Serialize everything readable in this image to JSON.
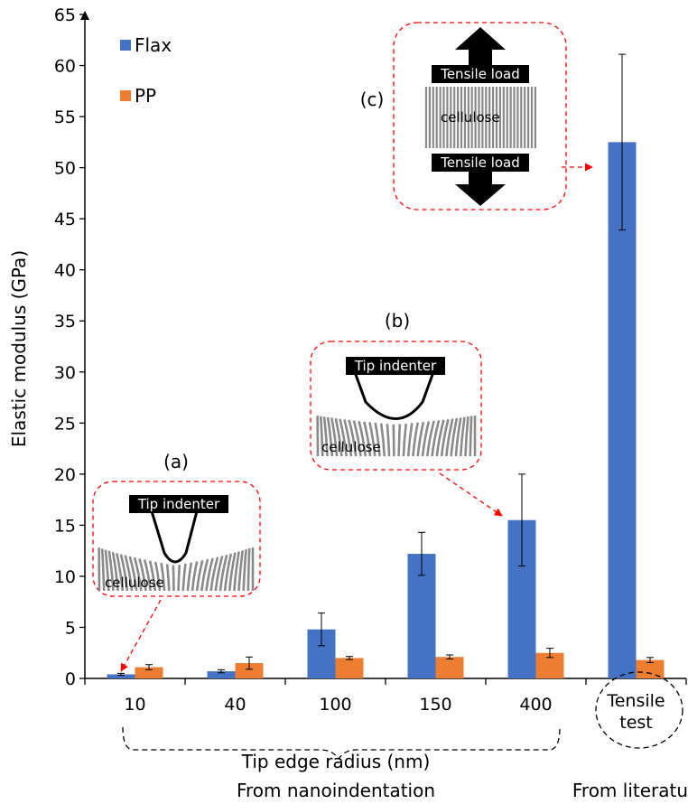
{
  "chart_data": {
    "type": "bar",
    "categories": [
      "10",
      "40",
      "100",
      "150",
      "400",
      "Tensile test"
    ],
    "series": [
      {
        "name": "Flax",
        "values": [
          0.4,
          0.7,
          4.8,
          12.2,
          15.5,
          52.5
        ],
        "errors": [
          0.1,
          0.15,
          1.6,
          2.1,
          4.5,
          8.6
        ]
      },
      {
        "name": "PP",
        "values": [
          1.1,
          1.5,
          2.0,
          2.1,
          2.5,
          1.8
        ],
        "errors": [
          0.25,
          0.6,
          0.15,
          0.2,
          0.45,
          0.25
        ]
      }
    ],
    "ylabel": "Elastic modulus (GPa)",
    "ylim": [
      0,
      65
    ],
    "yticks": [
      "0",
      "5",
      "10",
      "15",
      "20",
      "25",
      "30",
      "35",
      "40",
      "45",
      "50",
      "55",
      "60",
      "65"
    ],
    "legend_position": "top-left",
    "grid": false,
    "xlabel_group1": "Tip edge radius (nm)",
    "xlabel_group1_sub": "From nanoindentation",
    "xlabel_group2": "From literature",
    "colors": {
      "Flax": "#4472C4",
      "PP": "#ED7D31",
      "annotation": "#FF0000"
    }
  },
  "annotations": {
    "a": {
      "label": "(a)",
      "indenter": "Tip indenter",
      "material": "cellulose"
    },
    "b": {
      "label": "(b)",
      "indenter": "Tip indenter",
      "material": "cellulose"
    },
    "c": {
      "label": "(c)",
      "load_top": "Tensile load",
      "load_bottom": "Tensile load",
      "material": "cellulose"
    }
  }
}
